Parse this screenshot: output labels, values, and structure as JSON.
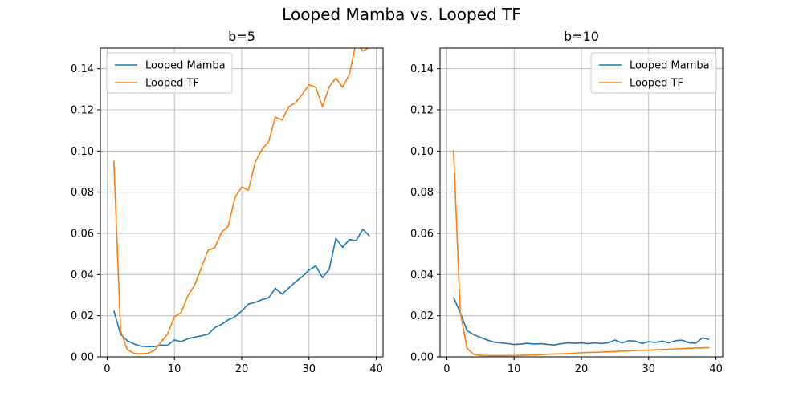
{
  "suptitle": "Looped Mamba vs. Looped TF",
  "colors": {
    "mamba": "#1f77b4",
    "tf": "#ff7f0e",
    "grid": "#b0b0b0",
    "axis": "#000000",
    "legend_edge": "#cccccc"
  },
  "chart_data": [
    {
      "type": "line",
      "title": "b=5",
      "xlabel": "",
      "ylabel": "",
      "xlim": [
        -1,
        41
      ],
      "ylim": [
        0,
        0.15
      ],
      "xticks": [
        0,
        10,
        20,
        30,
        40
      ],
      "xtick_labels": [
        "0",
        "10",
        "20",
        "30",
        "40"
      ],
      "yticks": [
        0.0,
        0.02,
        0.04,
        0.06,
        0.08,
        0.1,
        0.12,
        0.14
      ],
      "ytick_labels": [
        "0.00",
        "0.02",
        "0.04",
        "0.06",
        "0.08",
        "0.10",
        "0.12",
        "0.14"
      ],
      "grid": true,
      "legend_position": "top-left",
      "x": [
        1,
        2,
        3,
        4,
        5,
        6,
        7,
        8,
        9,
        10,
        11,
        12,
        13,
        14,
        15,
        16,
        17,
        18,
        19,
        20,
        21,
        22,
        23,
        24,
        25,
        26,
        27,
        28,
        29,
        30,
        31,
        32,
        33,
        34,
        35,
        36,
        37,
        38,
        39
      ],
      "series": [
        {
          "name": "Looped Mamba",
          "color_key": "mamba",
          "values": [
            0.0225,
            0.011,
            0.0078,
            0.0063,
            0.0052,
            0.005,
            0.005,
            0.0057,
            0.0057,
            0.0082,
            0.0074,
            0.0088,
            0.0096,
            0.0102,
            0.011,
            0.0142,
            0.0158,
            0.018,
            0.0195,
            0.0223,
            0.0257,
            0.0265,
            0.0278,
            0.0287,
            0.0333,
            0.0305,
            0.0335,
            0.0365,
            0.039,
            0.0422,
            0.0442,
            0.0385,
            0.0425,
            0.0575,
            0.0532,
            0.057,
            0.0565,
            0.062,
            0.0587
          ]
        },
        {
          "name": "Looped TF",
          "color_key": "tf",
          "values": [
            0.0952,
            0.0128,
            0.0035,
            0.0017,
            0.0015,
            0.0017,
            0.003,
            0.0072,
            0.0112,
            0.0195,
            0.0215,
            0.0298,
            0.0348,
            0.0432,
            0.0518,
            0.053,
            0.0605,
            0.0635,
            0.0775,
            0.0825,
            0.081,
            0.0945,
            0.1008,
            0.1045,
            0.1165,
            0.115,
            0.1215,
            0.1235,
            0.1275,
            0.1322,
            0.131,
            0.1215,
            0.1312,
            0.1355,
            0.131,
            0.1372,
            0.1528,
            0.1485,
            0.1505
          ]
        }
      ]
    },
    {
      "type": "line",
      "title": "b=10",
      "xlabel": "",
      "ylabel": "",
      "xlim": [
        -1,
        41
      ],
      "ylim": [
        0,
        0.15
      ],
      "xticks": [
        0,
        10,
        20,
        30,
        40
      ],
      "xtick_labels": [
        "0",
        "10",
        "20",
        "30",
        "40"
      ],
      "yticks": [
        0.0,
        0.02,
        0.04,
        0.06,
        0.08,
        0.1,
        0.12,
        0.14
      ],
      "ytick_labels": [
        "0.00",
        "0.02",
        "0.04",
        "0.06",
        "0.08",
        "0.10",
        "0.12",
        "0.14"
      ],
      "grid": true,
      "legend_position": "top-right",
      "x": [
        1,
        2,
        3,
        4,
        5,
        6,
        7,
        8,
        9,
        10,
        11,
        12,
        13,
        14,
        15,
        16,
        17,
        18,
        19,
        20,
        21,
        22,
        23,
        24,
        25,
        26,
        27,
        28,
        29,
        30,
        31,
        32,
        33,
        34,
        35,
        36,
        37,
        38,
        39
      ],
      "series": [
        {
          "name": "Looped Mamba",
          "color_key": "mamba",
          "values": [
            0.029,
            0.0215,
            0.0128,
            0.0108,
            0.0095,
            0.0082,
            0.0072,
            0.0068,
            0.0065,
            0.006,
            0.0062,
            0.0066,
            0.0062,
            0.0064,
            0.006,
            0.0058,
            0.0064,
            0.0068,
            0.0066,
            0.0068,
            0.0064,
            0.0068,
            0.0065,
            0.0068,
            0.0082,
            0.0068,
            0.0078,
            0.0077,
            0.0065,
            0.0074,
            0.007,
            0.0077,
            0.0068,
            0.0079,
            0.0081,
            0.0068,
            0.0067,
            0.0092,
            0.0085
          ]
        },
        {
          "name": "Looped TF",
          "color_key": "tf",
          "values": [
            0.1005,
            0.022,
            0.0042,
            0.0012,
            0.0007,
            0.0006,
            0.0006,
            0.0006,
            0.0006,
            0.0006,
            0.0007,
            0.0009,
            0.001,
            0.0011,
            0.0013,
            0.0014,
            0.0015,
            0.0016,
            0.0018,
            0.002,
            0.0021,
            0.0022,
            0.0023,
            0.0025,
            0.0026,
            0.0028,
            0.0029,
            0.0031,
            0.0032,
            0.0033,
            0.0035,
            0.0036,
            0.0037,
            0.0039,
            0.004,
            0.0042,
            0.0043,
            0.0044,
            0.0045
          ]
        }
      ]
    }
  ]
}
